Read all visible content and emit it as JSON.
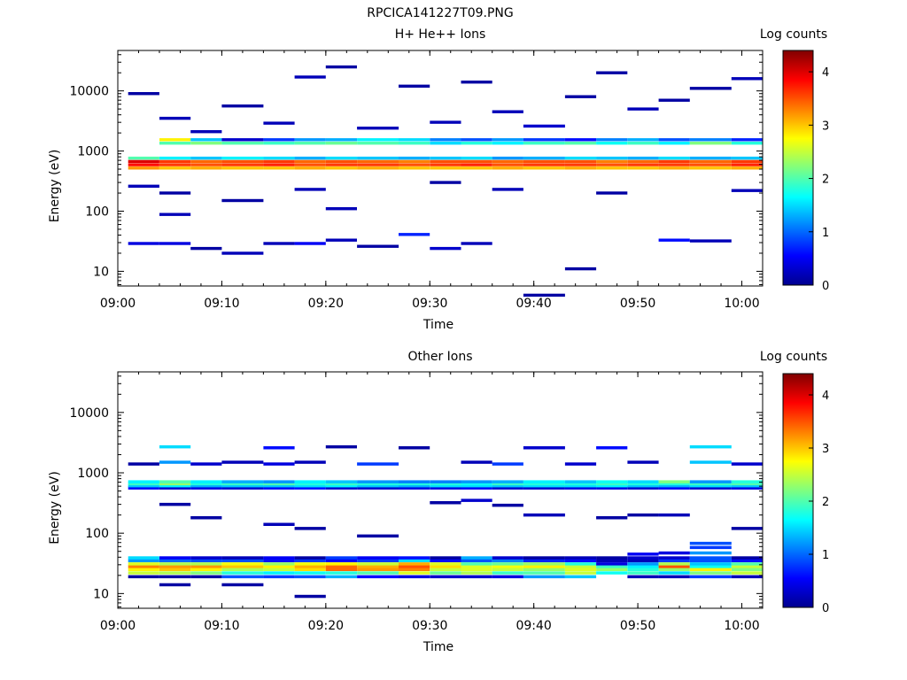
{
  "figure_title": "RPCICA141227T09.PNG",
  "colorscale": {
    "label": "Log counts",
    "ticks": [
      "0",
      "1",
      "2",
      "3",
      "4"
    ],
    "range": [
      0,
      4.4
    ]
  },
  "chart_data": [
    {
      "type": "heatmap",
      "title": "H+ He++ Ions",
      "xlabel": "Time",
      "ylabel": "Energy (eV)",
      "y_scale": "log",
      "ylim": [
        5.7,
        47000
      ],
      "xlim": [
        "09:00",
        "10:02"
      ],
      "x_ticks": [
        "09:00",
        "09:10",
        "09:20",
        "09:30",
        "09:40",
        "09:50",
        "10:00"
      ],
      "y_ticks": [
        "10",
        "100",
        "1000",
        "10000"
      ],
      "colorbar_label": "Log counts",
      "column_start_times": [
        "09:01",
        "09:04",
        "09:07",
        "09:10",
        "09:14",
        "09:17",
        "09:20",
        "09:23",
        "09:27",
        "09:30",
        "09:33",
        "09:36",
        "09:39",
        "09:43",
        "09:46",
        "09:49",
        "09:52",
        "09:55",
        "09:59"
      ],
      "bands": [
        {
          "e": 520,
          "v": [
            3.2,
            3.0,
            3.1,
            3.0,
            3.0,
            3.1,
            3.0,
            3.1,
            3.0,
            3.0,
            3.0,
            3.1,
            3.0,
            3.1,
            3.0,
            3.0,
            3.1,
            3.0,
            3.1
          ]
        },
        {
          "e": 590,
          "v": [
            3.8,
            3.6,
            3.5,
            3.6,
            3.7,
            3.5,
            3.6,
            3.6,
            3.5,
            3.6,
            3.7,
            3.5,
            3.6,
            3.6,
            3.5,
            3.6,
            3.6,
            3.5,
            3.7
          ]
        },
        {
          "e": 670,
          "v": [
            4.0,
            3.6,
            3.4,
            3.5,
            3.6,
            3.4,
            3.5,
            3.4,
            3.3,
            3.5,
            3.5,
            3.4,
            3.5,
            3.5,
            3.3,
            3.4,
            3.6,
            3.4,
            3.6
          ]
        },
        {
          "e": 760,
          "v": [
            2.0,
            1.6,
            1.4,
            1.6,
            1.5,
            1.3,
            1.5,
            1.4,
            1.3,
            1.4,
            1.5,
            1.2,
            1.3,
            1.5,
            1.4,
            1.3,
            1.5,
            1.3,
            1.4
          ]
        },
        {
          "e": 1350,
          "v": [
            0,
            2.0,
            2.2,
            2.0,
            1.9,
            2.0,
            2.1,
            2.0,
            1.9,
            1.5,
            1.8,
            1.6,
            1.9,
            2.0,
            1.7,
            1.9,
            1.6,
            2.2,
            1.8
          ]
        },
        {
          "e": 1540,
          "v": [
            0,
            2.8,
            1.4,
            0.3,
            0.8,
            1.2,
            1.3,
            1.6,
            1.5,
            1.1,
            0.9,
            1.2,
            0.8,
            0.6,
            1.1,
            1.3,
            0.9,
            1.1,
            0.7
          ]
        }
      ],
      "sparse_bins": [
        [
          0,
          29,
          0.4
        ],
        [
          1,
          29,
          0.4
        ],
        [
          2,
          24,
          0.1
        ],
        [
          3,
          20,
          0.2
        ],
        [
          4,
          29,
          0.2
        ],
        [
          5,
          29,
          0.5
        ],
        [
          6,
          33,
          0.2
        ],
        [
          7,
          26,
          0.1
        ],
        [
          8,
          41,
          0.7
        ],
        [
          9,
          24,
          0.3
        ],
        [
          10,
          29,
          0.2
        ],
        [
          12,
          4,
          0.1
        ],
        [
          16,
          33,
          0.6
        ],
        [
          17,
          32,
          0.2
        ],
        [
          1,
          88,
          0.2
        ],
        [
          6,
          110,
          0.2
        ],
        [
          13,
          11,
          0.1
        ],
        [
          0,
          260,
          0.2
        ],
        [
          1,
          200,
          0.1
        ],
        [
          3,
          150,
          0.1
        ],
        [
          5,
          230,
          0.2
        ],
        [
          9,
          300,
          0.1
        ],
        [
          11,
          230,
          0.2
        ],
        [
          14,
          200,
          0.1
        ],
        [
          18,
          220,
          0.2
        ],
        [
          0,
          9000,
          0.1
        ],
        [
          1,
          3500,
          0.2
        ],
        [
          2,
          2100,
          0.2
        ],
        [
          3,
          5600,
          0.1
        ],
        [
          4,
          2900,
          0.2
        ],
        [
          5,
          17000,
          0.2
        ],
        [
          6,
          25000,
          0.1
        ],
        [
          7,
          2400,
          0.2
        ],
        [
          8,
          12000,
          0.1
        ],
        [
          9,
          3000,
          0.2
        ],
        [
          10,
          14000,
          0.1
        ],
        [
          11,
          4500,
          0.2
        ],
        [
          12,
          2600,
          0.3
        ],
        [
          13,
          8000,
          0.1
        ],
        [
          14,
          20000,
          0.1
        ],
        [
          15,
          5000,
          0.2
        ],
        [
          16,
          7000,
          0.1
        ],
        [
          17,
          11000,
          0.1
        ],
        [
          18,
          16000,
          0.2
        ]
      ]
    },
    {
      "type": "heatmap",
      "title": "Other Ions",
      "xlabel": "Time",
      "ylabel": "Energy (eV)",
      "y_scale": "log",
      "ylim": [
        5.7,
        47000
      ],
      "xlim": [
        "09:00",
        "10:02"
      ],
      "x_ticks": [
        "09:00",
        "09:10",
        "09:20",
        "09:30",
        "09:40",
        "09:50",
        "10:00"
      ],
      "y_ticks": [
        "10",
        "100",
        "1000",
        "10000"
      ],
      "colorbar_label": "Log counts",
      "column_start_times": [
        "09:01",
        "09:04",
        "09:07",
        "09:10",
        "09:14",
        "09:17",
        "09:20",
        "09:23",
        "09:27",
        "09:30",
        "09:33",
        "09:36",
        "09:39",
        "09:43",
        "09:46",
        "09:49",
        "09:52",
        "09:55",
        "09:59"
      ],
      "bands": [
        {
          "e": 19,
          "v": [
            0.1,
            0.1,
            0.1,
            0.9,
            0.8,
            0.9,
            1.3,
            0.6,
            0.4,
            0.3,
            0.3,
            0.4,
            1.2,
            1.4,
            0,
            0.2,
            0.2,
            0.8,
            0.2
          ]
        },
        {
          "e": 22,
          "v": [
            2.5,
            2.4,
            2.2,
            1.8,
            1.6,
            1.7,
            1.8,
            2.0,
            2.6,
            2.1,
            2.4,
            1.9,
            2.0,
            2.5,
            1.7,
            1.9,
            1.5,
            2.2,
            2.5
          ]
        },
        {
          "e": 25,
          "v": [
            2.8,
            3.0,
            2.8,
            2.4,
            2.5,
            2.9,
            3.4,
            3.2,
            3.3,
            2.5,
            2.6,
            2.5,
            2.3,
            2.6,
            2.3,
            1.8,
            2.3,
            2.8,
            2.2
          ]
        },
        {
          "e": 28,
          "v": [
            3.3,
            3.2,
            3.2,
            3.0,
            2.8,
            3.1,
            3.4,
            3.1,
            3.5,
            2.9,
            2.6,
            2.7,
            2.8,
            2.5,
            1.9,
            1.6,
            3.5,
            1.7,
            2.5
          ]
        },
        {
          "e": 31,
          "v": [
            2.6,
            2.4,
            2.4,
            2.7,
            2.3,
            2.7,
            2.8,
            2.5,
            3.1,
            2.6,
            2.0,
            2.1,
            2.3,
            1.8,
            0.4,
            1.2,
            2.4,
            1.4,
            2.0
          ]
        },
        {
          "e": 35,
          "v": [
            1.2,
            1.0,
            0.9,
            0.9,
            0.6,
            0.8,
            0.5,
            0.8,
            1.5,
            0.6,
            0.9,
            1.1,
            0.7,
            0.6,
            0.2,
            0.2,
            0.8,
            0.9,
            0.6
          ]
        },
        {
          "e": 39,
          "v": [
            1.5,
            0.5,
            0.3,
            0.2,
            0.5,
            0.1,
            0.8,
            0.5,
            0.6,
            0.1,
            1.3,
            0.3,
            0.1,
            0.2,
            0.1,
            0.3,
            0.3,
            0.9,
            0.1
          ]
        },
        {
          "e": 560,
          "v": [
            0.5,
            0.3,
            0.4,
            0.3,
            0.5,
            0.6,
            0.3,
            0.3,
            0.4,
            0.4,
            0.5,
            0.3,
            0.3,
            0.4,
            0.4,
            0.3,
            0.5,
            0.3,
            0.4
          ]
        },
        {
          "e": 610,
          "v": [
            1.4,
            1.6,
            1.3,
            1.4,
            1.4,
            1.5,
            1.6,
            1.4,
            1.3,
            1.5,
            1.5,
            1.4,
            1.5,
            1.5,
            1.6,
            1.4,
            1.3,
            1.5,
            1.4
          ]
        },
        {
          "e": 660,
          "v": [
            1.9,
            2.3,
            1.8,
            1.9,
            2.0,
            1.8,
            1.9,
            1.8,
            1.8,
            1.8,
            1.7,
            1.9,
            1.8,
            1.8,
            1.9,
            1.8,
            1.8,
            1.9,
            2.0
          ]
        },
        {
          "e": 710,
          "v": [
            1.6,
            2.0,
            1.6,
            1.3,
            1.2,
            1.6,
            1.4,
            1.2,
            1.1,
            1.1,
            1.2,
            1.3,
            1.6,
            1.4,
            1.7,
            1.5,
            2.2,
            1.2,
            1.8
          ]
        }
      ],
      "sparse_bins": [
        [
          1,
          14,
          0.1
        ],
        [
          3,
          14,
          0.1
        ],
        [
          5,
          9,
          0.1
        ],
        [
          17,
          58,
          0.8
        ],
        [
          17,
          68,
          0.9
        ],
        [
          17,
          47,
          1.2
        ],
        [
          16,
          47,
          0.4
        ],
        [
          15,
          45,
          0.5
        ],
        [
          0,
          1400,
          0.1
        ],
        [
          1,
          1500,
          1.2
        ],
        [
          1,
          2700,
          1.5
        ],
        [
          2,
          1400,
          0.3
        ],
        [
          3,
          1500,
          0.2
        ],
        [
          4,
          1400,
          0.4
        ],
        [
          4,
          2600,
          0.6
        ],
        [
          5,
          1500,
          0.2
        ],
        [
          6,
          2700,
          0.1
        ],
        [
          7,
          1400,
          0.8
        ],
        [
          8,
          2600,
          0.1
        ],
        [
          10,
          1500,
          0.2
        ],
        [
          11,
          1400,
          0.8
        ],
        [
          12,
          2600,
          0.3
        ],
        [
          13,
          1400,
          0.3
        ],
        [
          14,
          2600,
          0.6
        ],
        [
          15,
          1500,
          0.2
        ],
        [
          17,
          1500,
          1.4
        ],
        [
          17,
          2700,
          1.5
        ],
        [
          18,
          1400,
          0.3
        ],
        [
          1,
          300,
          0.1
        ],
        [
          2,
          180,
          0.1
        ],
        [
          4,
          140,
          0.2
        ],
        [
          5,
          120,
          0.1
        ],
        [
          7,
          90,
          0.1
        ],
        [
          9,
          320,
          0.1
        ],
        [
          10,
          350,
          0.3
        ],
        [
          11,
          290,
          0.1
        ],
        [
          12,
          200,
          0.2
        ],
        [
          14,
          180,
          0.1
        ],
        [
          15,
          200,
          0.1
        ],
        [
          16,
          200,
          0.2
        ],
        [
          18,
          120,
          0.1
        ]
      ]
    }
  ]
}
